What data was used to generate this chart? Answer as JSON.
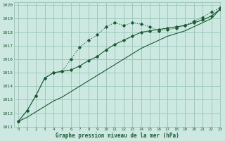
{
  "title": "Graphe pression niveau de la mer (hPa)",
  "bg_color": "#cce8e0",
  "grid_color": "#99ccbb",
  "line_color": "#1a5c32",
  "xlim": [
    -0.5,
    23
  ],
  "ylim": [
    1011,
    1020.2
  ],
  "xticks": [
    0,
    1,
    2,
    3,
    4,
    5,
    6,
    7,
    8,
    9,
    10,
    11,
    12,
    13,
    14,
    15,
    16,
    17,
    18,
    19,
    20,
    21,
    22,
    23
  ],
  "yticks": [
    1011,
    1012,
    1013,
    1014,
    1015,
    1016,
    1017,
    1018,
    1019,
    1020
  ],
  "series1_x": [
    0,
    1,
    2,
    3,
    4,
    5,
    6,
    7,
    8,
    9,
    10,
    11,
    12,
    13,
    14,
    15,
    16,
    17,
    18,
    19,
    20,
    21,
    22,
    23
  ],
  "series1_y": [
    1011.4,
    1012.2,
    1013.3,
    1014.6,
    1015.0,
    1015.1,
    1016.0,
    1016.9,
    1017.4,
    1017.8,
    1018.4,
    1018.7,
    1018.5,
    1018.7,
    1018.6,
    1018.4,
    1018.1,
    1018.2,
    1018.3,
    1018.5,
    1018.8,
    1019.1,
    1019.5,
    1019.8
  ],
  "series2_x": [
    0,
    1,
    2,
    3,
    4,
    5,
    6,
    7,
    8,
    9,
    10,
    11,
    12,
    13,
    14,
    15,
    16,
    17,
    18,
    19,
    20,
    21,
    22,
    23
  ],
  "series2_y": [
    1011.4,
    1012.2,
    1013.3,
    1014.6,
    1015.0,
    1015.1,
    1015.2,
    1015.5,
    1015.9,
    1016.2,
    1016.7,
    1017.1,
    1017.4,
    1017.7,
    1018.0,
    1018.1,
    1018.2,
    1018.3,
    1018.4,
    1018.5,
    1018.7,
    1018.9,
    1019.2,
    1019.7
  ],
  "series3_x": [
    0,
    1,
    2,
    3,
    4,
    5,
    6,
    7,
    8,
    9,
    10,
    11,
    12,
    13,
    14,
    15,
    16,
    17,
    18,
    19,
    20,
    21,
    22,
    23
  ],
  "series3_y": [
    1011.4,
    1011.7,
    1012.1,
    1012.5,
    1012.9,
    1013.2,
    1013.6,
    1014.0,
    1014.4,
    1014.8,
    1015.2,
    1015.6,
    1016.0,
    1016.4,
    1016.8,
    1017.1,
    1017.4,
    1017.7,
    1017.9,
    1018.1,
    1018.4,
    1018.7,
    1019.0,
    1019.7
  ]
}
